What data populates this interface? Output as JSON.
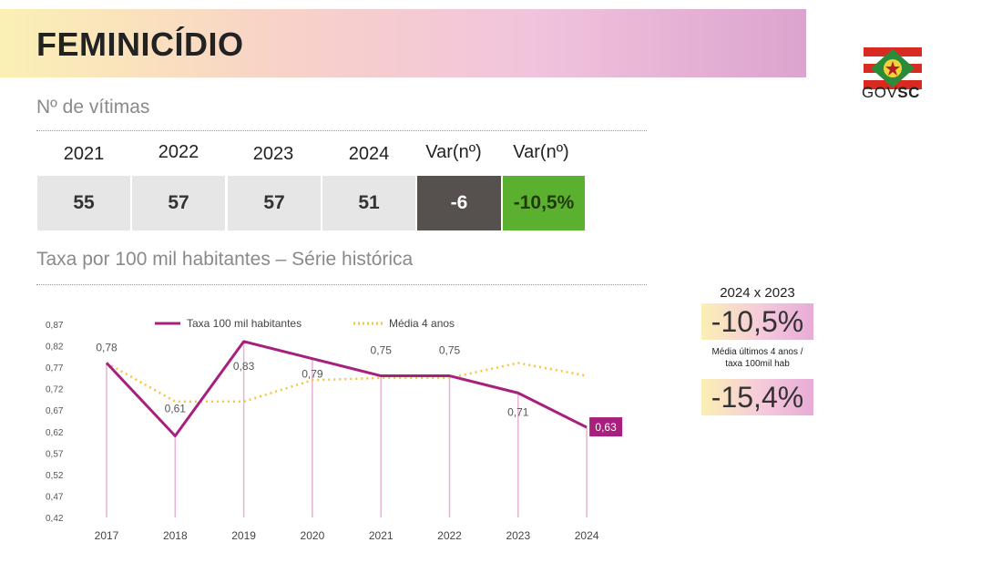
{
  "header": {
    "title": "FEMINICÍDIO"
  },
  "logo": {
    "text_light": "GOV",
    "text_bold": "SC"
  },
  "victims_section": {
    "title": "Nº de vítimas",
    "headers": [
      "2021",
      "2022",
      "2023",
      "2024",
      "Var(nº)",
      "Var(nº)"
    ],
    "values": [
      "55",
      "57",
      "57",
      "51",
      "-6",
      "-10,5%"
    ]
  },
  "rate_section": {
    "title": "Taxa por 100 mil habitantes – Série histórica"
  },
  "side_panel": {
    "comparison_label": "2024  x 2023",
    "comparison_value": "-10,5%",
    "average_label_line1": "Média últimos 4 anos /",
    "average_label_line2": "taxa 100mil hab",
    "average_value": "-15,4%"
  },
  "colors": {
    "rate": "#a8207e",
    "average": "#f4c53a",
    "dark_cell": "#56514f",
    "green_cell": "#5cb030"
  },
  "chart_data": {
    "type": "line",
    "categories": [
      "2017",
      "2018",
      "2019",
      "2020",
      "2021",
      "2022",
      "2023",
      "2024"
    ],
    "series": [
      {
        "name": "Taxa 100 mil habitantes",
        "values": [
          0.78,
          0.61,
          0.83,
          0.79,
          0.75,
          0.75,
          0.71,
          0.63
        ],
        "labels": [
          "0,78",
          "0,61",
          "0,83",
          "0,79",
          "0,75",
          "0,75",
          "0,71",
          "0,63"
        ]
      },
      {
        "name": "Média 4 anos",
        "values": [
          0.78,
          0.69,
          0.69,
          0.74,
          0.745,
          0.745,
          0.78,
          0.75
        ]
      }
    ],
    "y_ticks": [
      "0,42",
      "0,47",
      "0,52",
      "0,57",
      "0,62",
      "0,67",
      "0,72",
      "0,77",
      "0,82",
      "0,87"
    ],
    "ylim": [
      0.42,
      0.87
    ],
    "legend": "top",
    "grid": false
  }
}
